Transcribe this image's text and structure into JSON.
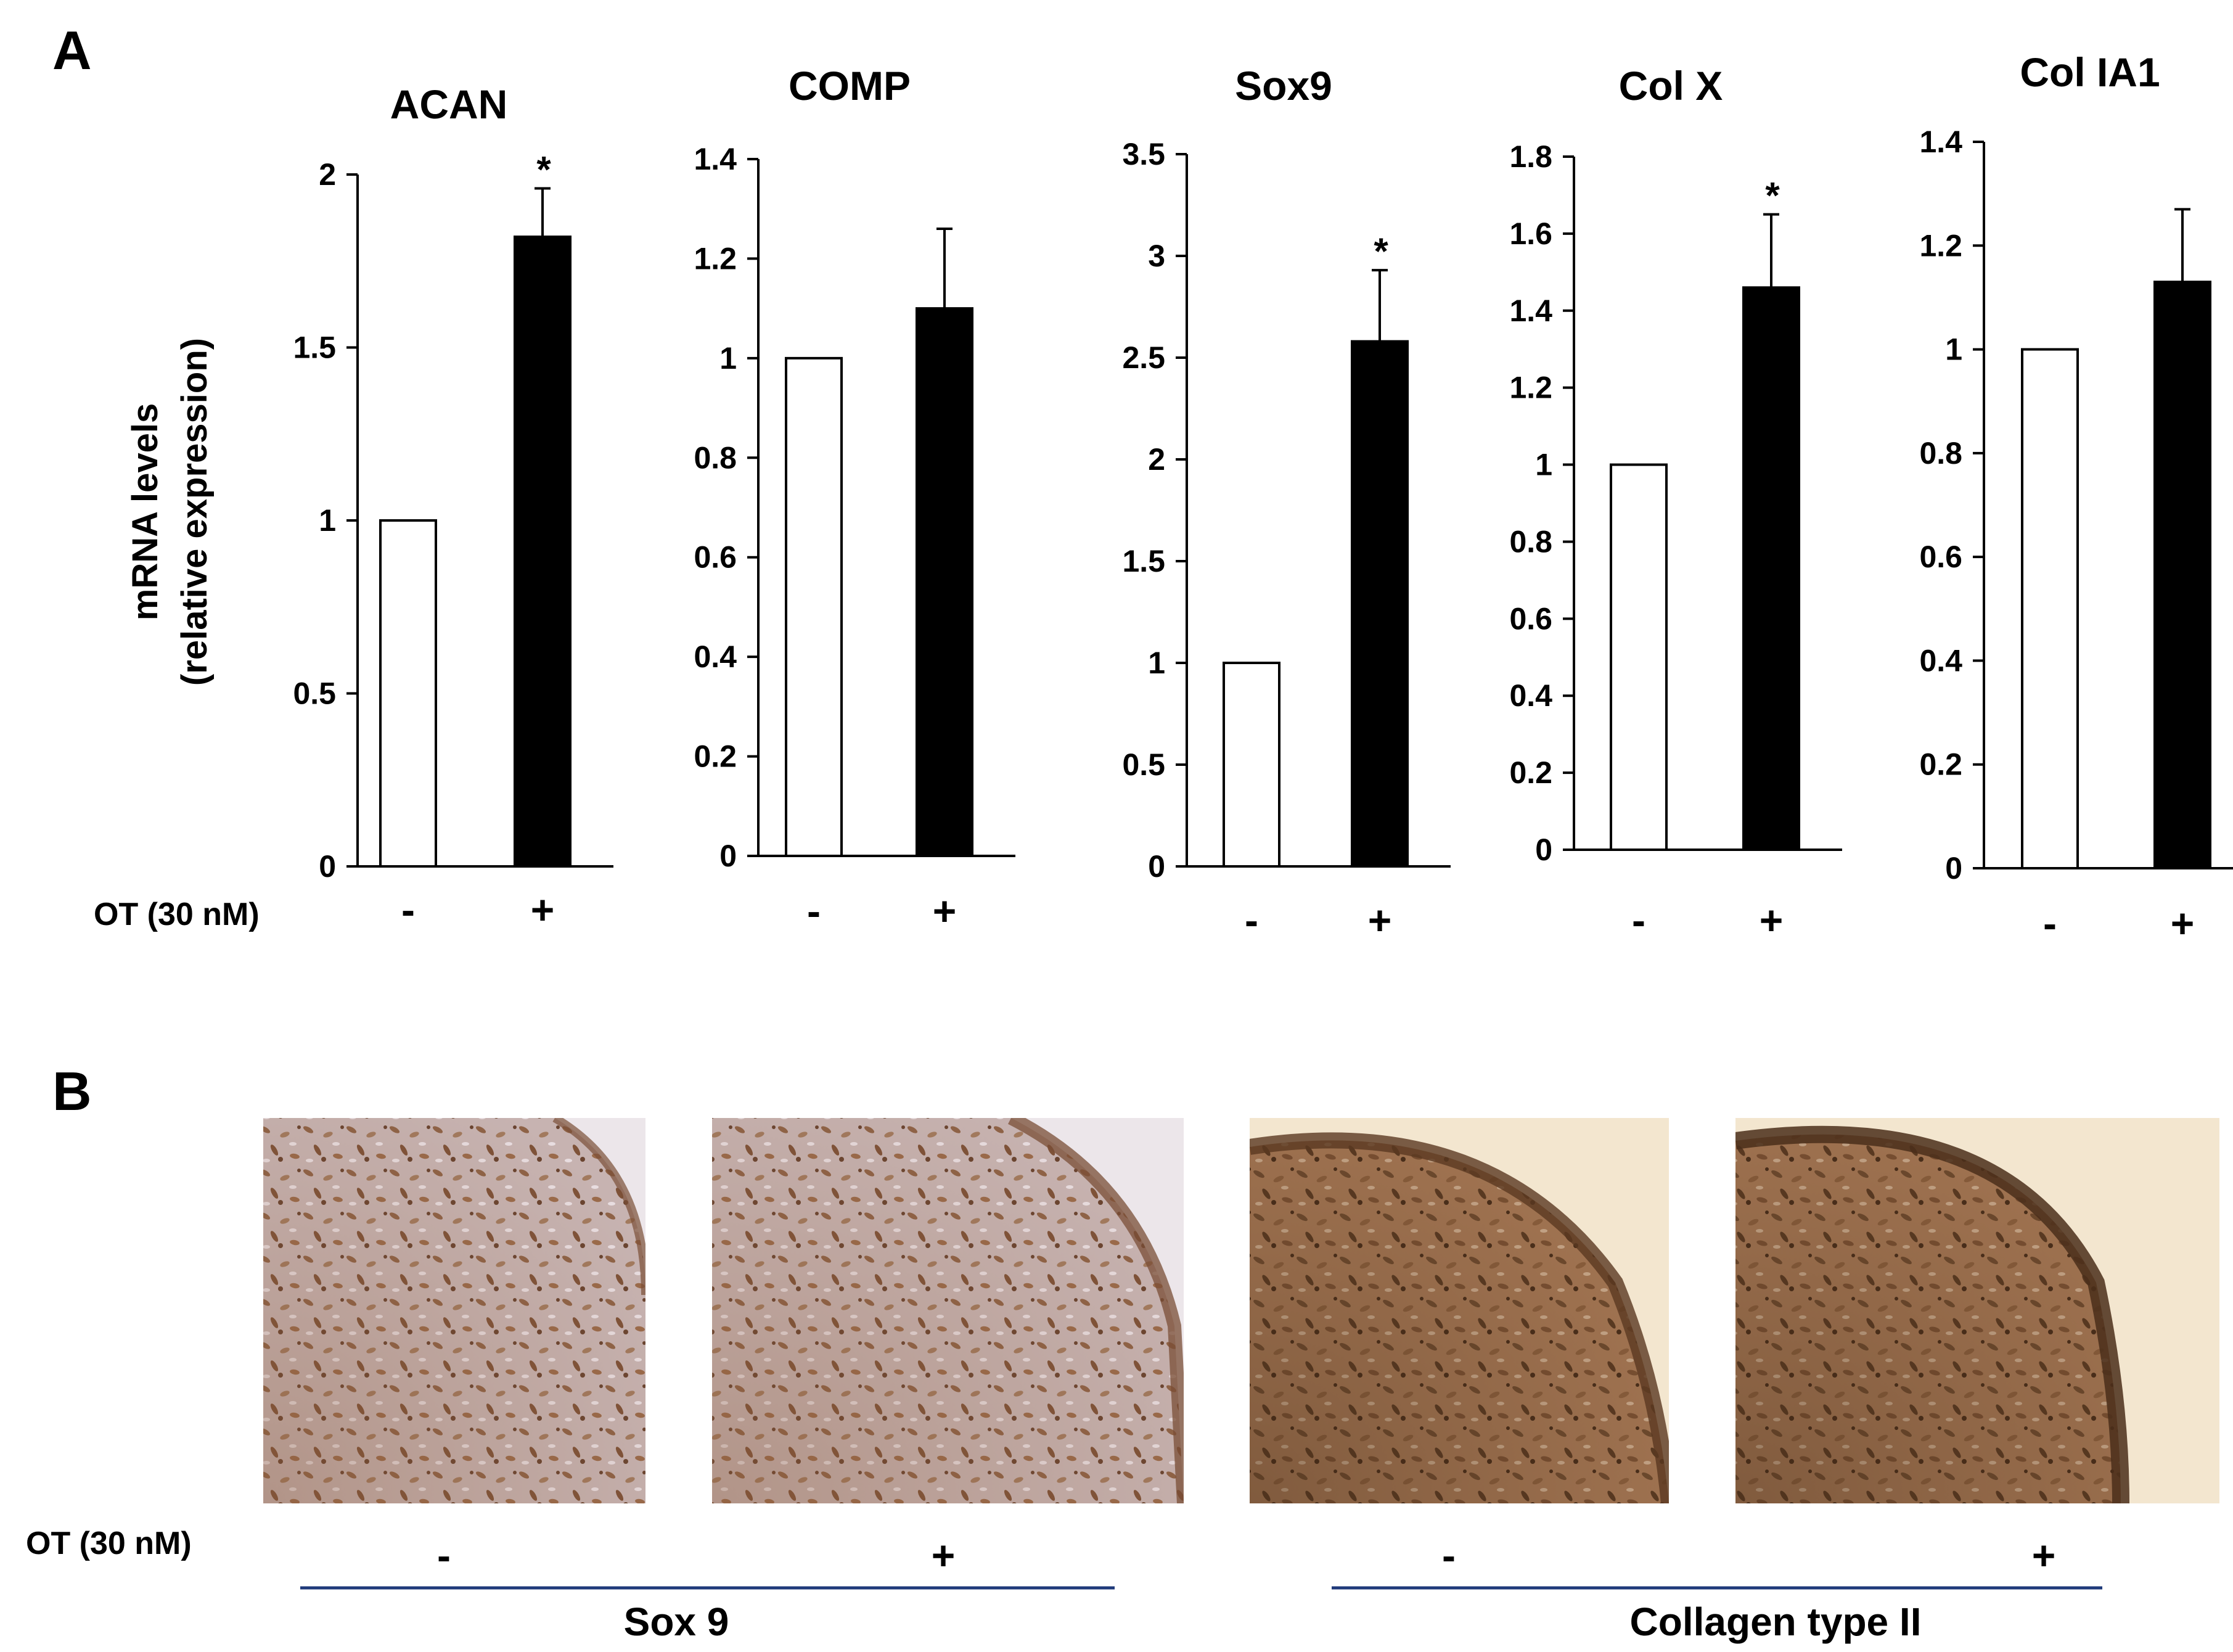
{
  "panel_labels": [
    "A",
    "B"
  ],
  "y_axis_label": [
    "mRNA levels",
    "(relative expression)"
  ],
  "treatment_label": "OT (30 nM)",
  "conditions": [
    "-",
    "+"
  ],
  "chart_data": [
    {
      "type": "bar",
      "title": "ACAN",
      "categories": [
        "-",
        "+"
      ],
      "values": [
        1.0,
        1.82
      ],
      "errors": [
        0,
        0.14
      ],
      "significant": [
        false,
        true
      ],
      "significance_marker": "*",
      "ylim": [
        0,
        2
      ],
      "yticks": [
        0,
        0.5,
        1,
        1.5,
        2
      ],
      "yticklabels": [
        "0",
        "0.5",
        "1",
        "1.5",
        "2"
      ],
      "ylabel": "mRNA levels (relative expression)",
      "bar_colors": [
        "#ffffff",
        "#000000"
      ]
    },
    {
      "type": "bar",
      "title": "COMP",
      "categories": [
        "-",
        "+"
      ],
      "values": [
        1.0,
        1.1
      ],
      "errors": [
        0,
        0.16
      ],
      "significant": [
        false,
        false
      ],
      "significance_marker": "*",
      "ylim": [
        0,
        1.4
      ],
      "yticks": [
        0,
        0.2,
        0.4,
        0.6,
        0.8,
        1,
        1.2,
        1.4
      ],
      "yticklabels": [
        "0",
        "0.2",
        "0.4",
        "0.6",
        "0.8",
        "1",
        "1.2",
        "1.4"
      ],
      "bar_colors": [
        "#ffffff",
        "#000000"
      ]
    },
    {
      "type": "bar",
      "title": "Sox9",
      "categories": [
        "-",
        "+"
      ],
      "values": [
        1.0,
        2.58
      ],
      "errors": [
        0,
        0.35
      ],
      "significant": [
        false,
        true
      ],
      "significance_marker": "*",
      "ylim": [
        0,
        3.5
      ],
      "yticks": [
        0,
        0.5,
        1,
        1.5,
        2,
        2.5,
        3,
        3.5
      ],
      "yticklabels": [
        "0",
        "0.5",
        "1",
        "1.5",
        "2",
        "2.5",
        "3",
        "3.5"
      ],
      "bar_colors": [
        "#ffffff",
        "#000000"
      ]
    },
    {
      "type": "bar",
      "title": "Col X",
      "categories": [
        "-",
        "+"
      ],
      "values": [
        1.0,
        1.46
      ],
      "errors": [
        0,
        0.19
      ],
      "significant": [
        false,
        true
      ],
      "significance_marker": "*",
      "ylim": [
        0,
        1.8
      ],
      "yticks": [
        0,
        0.2,
        0.4,
        0.6,
        0.8,
        1,
        1.2,
        1.4,
        1.6,
        1.8
      ],
      "yticklabels": [
        "0",
        "0.2",
        "0.4",
        "0.6",
        "0.8",
        "1",
        "1.2",
        "1.4",
        "1.6",
        "1.8"
      ],
      "bar_colors": [
        "#ffffff",
        "#000000"
      ]
    },
    {
      "type": "bar",
      "title": "Col IA1",
      "categories": [
        "-",
        "+"
      ],
      "values": [
        1.0,
        1.13
      ],
      "errors": [
        0,
        0.14
      ],
      "significant": [
        false,
        false
      ],
      "significance_marker": "*",
      "ylim": [
        0,
        1.4
      ],
      "yticks": [
        0,
        0.2,
        0.4,
        0.6,
        0.8,
        1,
        1.2,
        1.4
      ],
      "yticklabels": [
        "0",
        "0.2",
        "0.4",
        "0.6",
        "0.8",
        "1",
        "1.2",
        "1.4"
      ],
      "bar_colors": [
        "#ffffff",
        "#000000"
      ]
    }
  ],
  "histology": {
    "groups": [
      {
        "stain": "Sox 9",
        "conditions": [
          "-",
          "+"
        ]
      },
      {
        "stain": "Collagen type II",
        "conditions": [
          "-",
          "+"
        ]
      }
    ],
    "bracket_color": "#1f3a7a",
    "tissue_colors": {
      "sox9": {
        "bg": "#ece6ea",
        "base": "#bfa7a4",
        "cell": "#8a5a3a",
        "dark": "#5a3a2a"
      },
      "col2": {
        "bg": "#f3e6cf",
        "base": "#a87a55",
        "cell": "#6e4a2e",
        "dark": "#3e2816"
      }
    }
  }
}
